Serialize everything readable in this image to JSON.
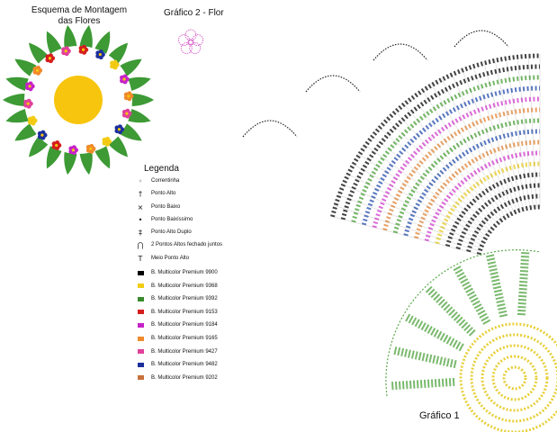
{
  "titles": {
    "scheme_line1": "Esquema de Montagem",
    "scheme_line2": "das Flores",
    "graph2": "Gráfico 2 - Flor",
    "graph1": "Gráfico 1"
  },
  "legend": {
    "title": "Legenda",
    "stitches": [
      {
        "symbol": "◦",
        "label": "Correntinha"
      },
      {
        "symbol": "†",
        "label": "Ponto Alto"
      },
      {
        "symbol": "×",
        "label": "Ponto Baixo"
      },
      {
        "symbol": "•",
        "label": "Ponto Baixíssimo"
      },
      {
        "symbol": "‡",
        "label": "Ponto Alto Duplo"
      },
      {
        "symbol": "⋂",
        "label": "2 Pontos Altos fechado juntos"
      },
      {
        "symbol": "T",
        "label": "Meio Ponto Alto"
      }
    ],
    "colors": [
      {
        "label": "B. Multicolor Premium 9900",
        "color": "#000000"
      },
      {
        "label": "B. Multicolor Premium 9368",
        "color": "#f2cc14"
      },
      {
        "label": "B. Multicolor Premium 9392",
        "color": "#3a8a2e"
      },
      {
        "label": "B. Multicolor Premium 9153",
        "color": "#d51d1d"
      },
      {
        "label": "B. Multicolor Premium 9184",
        "color": "#c622c9"
      },
      {
        "label": "B. Multicolor Premium 9165",
        "color": "#f08a2a"
      },
      {
        "label": "B. Multicolor Premium 9427",
        "color": "#e0409a"
      },
      {
        "label": "B. Multicolor Premium 9482",
        "color": "#1c2f9c"
      },
      {
        "label": "B. Multicolor Premium 9202",
        "color": "#c7713b"
      }
    ]
  },
  "colors": {
    "leaf_green": "#3d9a35",
    "center_yellow": "#f7c50e",
    "chart_black": "#222222",
    "chart_green": "#5aa84a",
    "chart_orange": "#e3904a",
    "chart_blue": "#3b5fb5",
    "chart_magenta": "#d64fd2",
    "chart_yellow": "#e8cf3a",
    "flower_pink": "#d864c9"
  }
}
